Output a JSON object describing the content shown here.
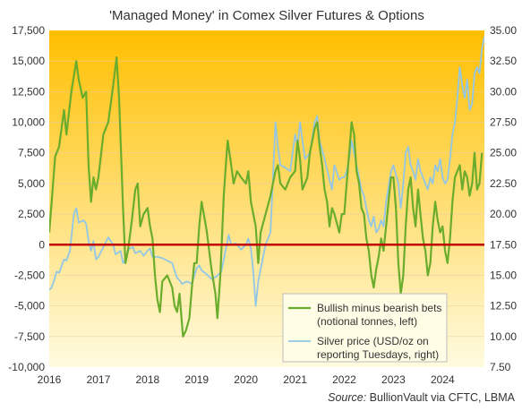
{
  "chart_data": {
    "type": "line",
    "title": "'Managed Money' in Comex Silver Futures & Options",
    "source_prefix": "Source:",
    "source_text": " BullionVault via CFTC, LBMA",
    "x_ticks": [
      "2016",
      "2017",
      "2018",
      "2019",
      "2020",
      "2021",
      "2022",
      "2023",
      "2024"
    ],
    "xlim": [
      2016.0,
      2024.85
    ],
    "y_left": {
      "ticks": [
        "-10,000",
        "-7,500",
        "-5,000",
        "-2,500",
        "0",
        "2,500",
        "5,000",
        "7,500",
        "10,000",
        "12,500",
        "15,000",
        "17,500"
      ],
      "ylim": [
        -10000,
        17500
      ],
      "zero_line_value": 0
    },
    "y_right": {
      "ticks": [
        "7.50",
        "10.00",
        "12.50",
        "15.00",
        "17.50",
        "20.00",
        "22.50",
        "25.00",
        "27.50",
        "30.00",
        "32.50",
        "35.00"
      ],
      "ylim": [
        7.5,
        35
      ]
    },
    "legend": [
      {
        "label_line1": "Bullish minus bearish bets",
        "label_line2": "(notional tonnes, left)",
        "color": "#6aac2c"
      },
      {
        "label_line1": "Silver price (USD/oz on",
        "label_line2": "reporting Tuesdays, right)",
        "color": "#92c6e6"
      }
    ],
    "colors": {
      "bg_top": "#ffbf00",
      "bg_bottom": "#fffbe0",
      "zero_line": "#c00000",
      "net_bets": "#6aac2c",
      "silver": "#92c6e6"
    },
    "series": [
      {
        "name": "Bullish minus bearish bets",
        "axis": "left",
        "points": [
          [
            2016.0,
            1000
          ],
          [
            2016.05,
            3500
          ],
          [
            2016.12,
            7200
          ],
          [
            2016.2,
            8000
          ],
          [
            2016.3,
            11000
          ],
          [
            2016.35,
            9000
          ],
          [
            2016.45,
            12500
          ],
          [
            2016.55,
            15000
          ],
          [
            2016.6,
            13500
          ],
          [
            2016.68,
            12000
          ],
          [
            2016.75,
            12500
          ],
          [
            2016.8,
            6500
          ],
          [
            2016.85,
            3500
          ],
          [
            2016.9,
            5500
          ],
          [
            2016.95,
            4500
          ],
          [
            2017.0,
            5500
          ],
          [
            2017.1,
            9000
          ],
          [
            2017.2,
            10000
          ],
          [
            2017.3,
            13000
          ],
          [
            2017.37,
            15300
          ],
          [
            2017.42,
            12000
          ],
          [
            2017.5,
            3000
          ],
          [
            2017.55,
            -1500
          ],
          [
            2017.6,
            -500
          ],
          [
            2017.68,
            2000
          ],
          [
            2017.75,
            4500
          ],
          [
            2017.8,
            5000
          ],
          [
            2017.85,
            1500
          ],
          [
            2017.92,
            2500
          ],
          [
            2018.0,
            3000
          ],
          [
            2018.05,
            1500
          ],
          [
            2018.1,
            500
          ],
          [
            2018.15,
            -2500
          ],
          [
            2018.2,
            -4500
          ],
          [
            2018.25,
            -5500
          ],
          [
            2018.3,
            -3000
          ],
          [
            2018.4,
            -2500
          ],
          [
            2018.5,
            -3500
          ],
          [
            2018.55,
            -5000
          ],
          [
            2018.6,
            -5500
          ],
          [
            2018.65,
            -4000
          ],
          [
            2018.72,
            -7500
          ],
          [
            2018.78,
            -7000
          ],
          [
            2018.85,
            -6000
          ],
          [
            2018.9,
            -3500
          ],
          [
            2018.95,
            -1500
          ],
          [
            2019.0,
            -1500
          ],
          [
            2019.05,
            1500
          ],
          [
            2019.1,
            3500
          ],
          [
            2019.2,
            1200
          ],
          [
            2019.3,
            -2000
          ],
          [
            2019.38,
            -4000
          ],
          [
            2019.42,
            -6000
          ],
          [
            2019.48,
            -2500
          ],
          [
            2019.55,
            4000
          ],
          [
            2019.6,
            7000
          ],
          [
            2019.63,
            8500
          ],
          [
            2019.7,
            6500
          ],
          [
            2019.75,
            5000
          ],
          [
            2019.82,
            6000
          ],
          [
            2019.9,
            5500
          ],
          [
            2020.0,
            5000
          ],
          [
            2020.05,
            6000
          ],
          [
            2020.1,
            3500
          ],
          [
            2020.2,
            1500
          ],
          [
            2020.25,
            -1500
          ],
          [
            2020.3,
            1000
          ],
          [
            2020.4,
            2500
          ],
          [
            2020.5,
            4000
          ],
          [
            2020.6,
            6000
          ],
          [
            2020.65,
            6500
          ],
          [
            2020.7,
            5000
          ],
          [
            2020.8,
            4500
          ],
          [
            2020.9,
            5500
          ],
          [
            2021.0,
            6000
          ],
          [
            2021.05,
            8500
          ],
          [
            2021.1,
            7000
          ],
          [
            2021.15,
            4500
          ],
          [
            2021.25,
            5500
          ],
          [
            2021.3,
            7500
          ],
          [
            2021.4,
            9500
          ],
          [
            2021.45,
            10000
          ],
          [
            2021.5,
            8000
          ],
          [
            2021.55,
            6500
          ],
          [
            2021.6,
            4500
          ],
          [
            2021.65,
            3500
          ],
          [
            2021.7,
            1500
          ],
          [
            2021.75,
            3000
          ],
          [
            2021.8,
            2500
          ],
          [
            2021.9,
            1000
          ],
          [
            2021.95,
            2500
          ],
          [
            2022.0,
            2500
          ],
          [
            2022.05,
            5000
          ],
          [
            2022.1,
            7500
          ],
          [
            2022.15,
            10000
          ],
          [
            2022.2,
            9000
          ],
          [
            2022.25,
            6000
          ],
          [
            2022.3,
            5000
          ],
          [
            2022.35,
            3000
          ],
          [
            2022.4,
            2500
          ],
          [
            2022.45,
            500
          ],
          [
            2022.5,
            -500
          ],
          [
            2022.55,
            -2500
          ],
          [
            2022.6,
            -3500
          ],
          [
            2022.65,
            -2000
          ],
          [
            2022.7,
            -1000
          ],
          [
            2022.75,
            500
          ],
          [
            2022.8,
            -500
          ],
          [
            2022.85,
            1500
          ],
          [
            2022.9,
            3500
          ],
          [
            2022.95,
            5500
          ],
          [
            2023.0,
            5500
          ],
          [
            2023.05,
            3000
          ],
          [
            2023.1,
            -1500
          ],
          [
            2023.15,
            -4000
          ],
          [
            2023.2,
            -2500
          ],
          [
            2023.25,
            1500
          ],
          [
            2023.3,
            4500
          ],
          [
            2023.35,
            5500
          ],
          [
            2023.4,
            3000
          ],
          [
            2023.45,
            1500
          ],
          [
            2023.5,
            4500
          ],
          [
            2023.55,
            2500
          ],
          [
            2023.6,
            500
          ],
          [
            2023.65,
            -500
          ],
          [
            2023.7,
            -2500
          ],
          [
            2023.75,
            -1500
          ],
          [
            2023.8,
            1500
          ],
          [
            2023.85,
            3500
          ],
          [
            2023.9,
            2000
          ],
          [
            2023.95,
            1000
          ],
          [
            2024.0,
            1500
          ],
          [
            2024.05,
            -500
          ],
          [
            2024.1,
            -1500
          ],
          [
            2024.15,
            500
          ],
          [
            2024.2,
            3500
          ],
          [
            2024.25,
            5500
          ],
          [
            2024.3,
            6000
          ],
          [
            2024.35,
            6500
          ],
          [
            2024.4,
            4500
          ],
          [
            2024.45,
            6000
          ],
          [
            2024.5,
            5500
          ],
          [
            2024.55,
            4000
          ],
          [
            2024.6,
            5000
          ],
          [
            2024.65,
            7500
          ],
          [
            2024.7,
            4500
          ],
          [
            2024.75,
            5000
          ],
          [
            2024.8,
            7500
          ]
        ]
      },
      {
        "name": "Silver price (USD/oz on reporting Tuesdays, right)",
        "axis": "right",
        "points": [
          [
            2016.0,
            13.8
          ],
          [
            2016.05,
            14.0
          ],
          [
            2016.1,
            14.6
          ],
          [
            2016.15,
            15.3
          ],
          [
            2016.2,
            15.2
          ],
          [
            2016.3,
            16.3
          ],
          [
            2016.35,
            16.2
          ],
          [
            2016.42,
            17.0
          ],
          [
            2016.5,
            20.0
          ],
          [
            2016.55,
            20.5
          ],
          [
            2016.6,
            19.3
          ],
          [
            2016.7,
            19.5
          ],
          [
            2016.75,
            19.2
          ],
          [
            2016.8,
            17.8
          ],
          [
            2016.85,
            17.0
          ],
          [
            2016.9,
            17.8
          ],
          [
            2016.95,
            16.3
          ],
          [
            2017.0,
            16.5
          ],
          [
            2017.1,
            17.3
          ],
          [
            2017.2,
            18.1
          ],
          [
            2017.3,
            17.5
          ],
          [
            2017.35,
            16.7
          ],
          [
            2017.45,
            17.0
          ],
          [
            2017.5,
            16.0
          ],
          [
            2017.55,
            16.3
          ],
          [
            2017.6,
            17.1
          ],
          [
            2017.7,
            17.3
          ],
          [
            2017.75,
            16.8
          ],
          [
            2017.85,
            17.0
          ],
          [
            2017.92,
            16.6
          ],
          [
            2018.0,
            17.0
          ],
          [
            2018.05,
            17.2
          ],
          [
            2018.1,
            16.5
          ],
          [
            2018.2,
            16.5
          ],
          [
            2018.3,
            16.4
          ],
          [
            2018.4,
            16.2
          ],
          [
            2018.5,
            16.0
          ],
          [
            2018.55,
            15.4
          ],
          [
            2018.6,
            14.8
          ],
          [
            2018.65,
            14.6
          ],
          [
            2018.7,
            14.3
          ],
          [
            2018.8,
            14.5
          ],
          [
            2018.9,
            14.3
          ],
          [
            2019.0,
            15.6
          ],
          [
            2019.05,
            15.8
          ],
          [
            2019.1,
            15.4
          ],
          [
            2019.2,
            15.1
          ],
          [
            2019.3,
            14.7
          ],
          [
            2019.4,
            14.9
          ],
          [
            2019.5,
            15.3
          ],
          [
            2019.55,
            16.3
          ],
          [
            2019.6,
            17.3
          ],
          [
            2019.65,
            18.3
          ],
          [
            2019.7,
            17.5
          ],
          [
            2019.8,
            17.6
          ],
          [
            2019.9,
            17.1
          ],
          [
            2020.0,
            17.5
          ],
          [
            2020.05,
            18.0
          ],
          [
            2020.1,
            17.2
          ],
          [
            2020.15,
            15.3
          ],
          [
            2020.2,
            12.5
          ],
          [
            2020.25,
            14.5
          ],
          [
            2020.3,
            15.5
          ],
          [
            2020.4,
            17.5
          ],
          [
            2020.5,
            18.5
          ],
          [
            2020.55,
            23.0
          ],
          [
            2020.6,
            27.5
          ],
          [
            2020.65,
            25.5
          ],
          [
            2020.7,
            24.0
          ],
          [
            2020.8,
            23.8
          ],
          [
            2020.9,
            23.5
          ],
          [
            2020.95,
            25.0
          ],
          [
            2021.0,
            26.5
          ],
          [
            2021.05,
            25.5
          ],
          [
            2021.1,
            27.5
          ],
          [
            2021.15,
            26.0
          ],
          [
            2021.2,
            24.5
          ],
          [
            2021.3,
            25.0
          ],
          [
            2021.4,
            27.5
          ],
          [
            2021.45,
            28.0
          ],
          [
            2021.5,
            26.0
          ],
          [
            2021.6,
            24.5
          ],
          [
            2021.7,
            22.8
          ],
          [
            2021.75,
            22.0
          ],
          [
            2021.8,
            24.0
          ],
          [
            2021.9,
            22.8
          ],
          [
            2021.95,
            23.0
          ],
          [
            2022.0,
            23.0
          ],
          [
            2022.05,
            23.5
          ],
          [
            2022.1,
            24.5
          ],
          [
            2022.15,
            26.0
          ],
          [
            2022.2,
            25.0
          ],
          [
            2022.3,
            23.0
          ],
          [
            2022.35,
            22.0
          ],
          [
            2022.4,
            21.5
          ],
          [
            2022.5,
            19.5
          ],
          [
            2022.55,
            19.0
          ],
          [
            2022.6,
            19.8
          ],
          [
            2022.65,
            18.5
          ],
          [
            2022.7,
            18.8
          ],
          [
            2022.75,
            19.5
          ],
          [
            2022.8,
            19.0
          ],
          [
            2022.85,
            21.0
          ],
          [
            2022.95,
            23.5
          ],
          [
            2023.0,
            24.0
          ],
          [
            2023.1,
            22.5
          ],
          [
            2023.15,
            20.5
          ],
          [
            2023.2,
            22.5
          ],
          [
            2023.25,
            25.0
          ],
          [
            2023.3,
            25.5
          ],
          [
            2023.35,
            24.0
          ],
          [
            2023.4,
            23.5
          ],
          [
            2023.45,
            22.8
          ],
          [
            2023.5,
            24.5
          ],
          [
            2023.55,
            23.5
          ],
          [
            2023.6,
            23.0
          ],
          [
            2023.65,
            22.5
          ],
          [
            2023.7,
            22.0
          ],
          [
            2023.75,
            23.0
          ],
          [
            2023.8,
            22.5
          ],
          [
            2023.85,
            24.0
          ],
          [
            2023.9,
            23.5
          ],
          [
            2023.95,
            24.5
          ],
          [
            2024.0,
            23.0
          ],
          [
            2024.05,
            22.5
          ],
          [
            2024.1,
            22.8
          ],
          [
            2024.15,
            24.5
          ],
          [
            2024.2,
            26.5
          ],
          [
            2024.25,
            27.5
          ],
          [
            2024.3,
            29.5
          ],
          [
            2024.35,
            32.0
          ],
          [
            2024.4,
            30.5
          ],
          [
            2024.45,
            29.5
          ],
          [
            2024.5,
            31.0
          ],
          [
            2024.55,
            28.5
          ],
          [
            2024.6,
            29.0
          ],
          [
            2024.65,
            31.5
          ],
          [
            2024.7,
            32.0
          ],
          [
            2024.75,
            31.5
          ],
          [
            2024.8,
            33.5
          ],
          [
            2024.85,
            34.5
          ]
        ]
      }
    ]
  }
}
